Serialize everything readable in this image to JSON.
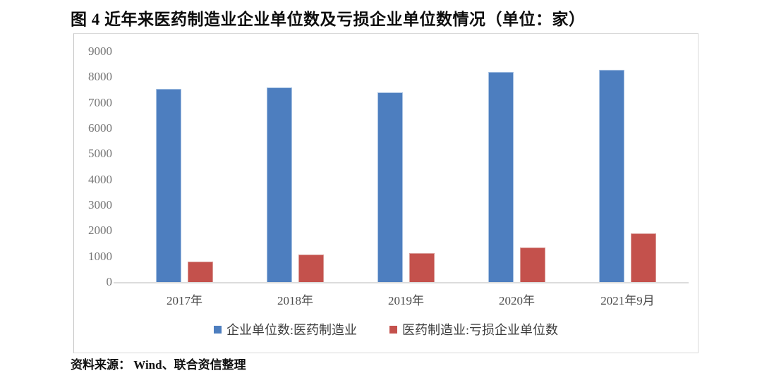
{
  "title": "图 4  近年来医药制造业企业单位数及亏损企业单位数情况（单位：家）",
  "source_note": {
    "label": "资料来源：",
    "text": " Wind、联合资信整理"
  },
  "chart_data": {
    "type": "bar",
    "title": "图 4  近年来医药制造业企业单位数及亏损企业单位数情况（单位：家）",
    "unit": "家",
    "categories": [
      "2017年",
      "2018年",
      "2019年",
      "2020年",
      "2021年9月"
    ],
    "series": [
      {
        "key": "enterprise-count",
        "name": "企业单位数:医药制造业",
        "color": "#4d7ebf",
        "border_color": "#aac4e4",
        "values": [
          7550,
          7600,
          7400,
          8190,
          8290
        ]
      },
      {
        "key": "loss-enterprise-count",
        "name": "医药制造业:亏损企业单位数",
        "color": "#c4514c",
        "border_color": "#d99b97",
        "values": [
          800,
          1080,
          1140,
          1340,
          1900
        ]
      }
    ],
    "xlabel": "",
    "ylabel": "",
    "ylim": [
      0,
      9000
    ],
    "yticks": [
      0,
      1000,
      2000,
      3000,
      4000,
      5000,
      6000,
      7000,
      8000,
      9000
    ],
    "grid": false,
    "legend_position": "bottom"
  },
  "colors": {
    "bar_blue": "#4d7ebf",
    "bar_red": "#c4514c",
    "axis_label": "#757575",
    "x_label": "#4d4d4d",
    "legend_text": "#3f3f3f",
    "frame_border": "#d9d9d9",
    "baseline": "#dcdcdc"
  }
}
